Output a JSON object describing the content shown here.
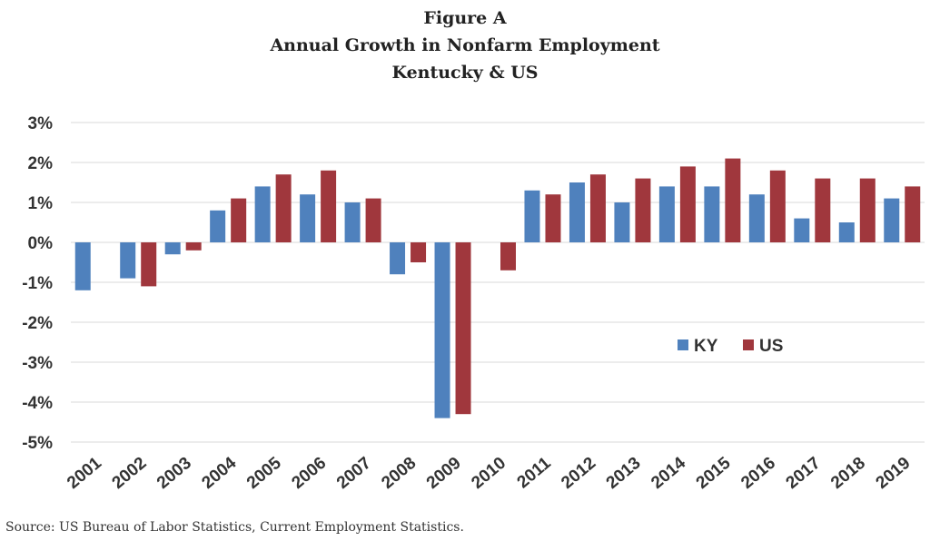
{
  "chart_data": {
    "type": "bar",
    "title_lines": [
      "Figure A",
      "Annual Growth in Nonfarm Employment",
      "Kentucky & US"
    ],
    "categories": [
      "2001",
      "2002",
      "2003",
      "2004",
      "2005",
      "2006",
      "2007",
      "2008",
      "2009",
      "2010",
      "2011",
      "2012",
      "2013",
      "2014",
      "2015",
      "2016",
      "2017",
      "2018",
      "2019"
    ],
    "series": [
      {
        "name": "KY",
        "color": "#4f81bd",
        "values": [
          -1.2,
          -0.9,
          -0.3,
          0.8,
          1.4,
          1.2,
          1.0,
          -0.8,
          -4.4,
          0.0,
          1.3,
          1.5,
          1.0,
          1.4,
          1.4,
          1.2,
          0.6,
          0.5,
          1.1
        ]
      },
      {
        "name": "US",
        "color": "#a0373d",
        "values": [
          null,
          -1.1,
          -0.2,
          1.1,
          1.7,
          1.8,
          1.1,
          -0.5,
          -4.3,
          -0.7,
          1.2,
          1.7,
          1.6,
          1.9,
          2.1,
          1.8,
          1.6,
          1.6,
          1.4
        ]
      }
    ],
    "y_ticks": [
      "3%",
      "2%",
      "1%",
      "0%",
      "-1%",
      "-2%",
      "-3%",
      "-4%",
      "-5%"
    ],
    "ylim": [
      -5,
      3
    ],
    "grid": true,
    "legend_position": "right-center",
    "source": "Source: US Bureau of Labor Statistics, Current Employment Statistics."
  }
}
